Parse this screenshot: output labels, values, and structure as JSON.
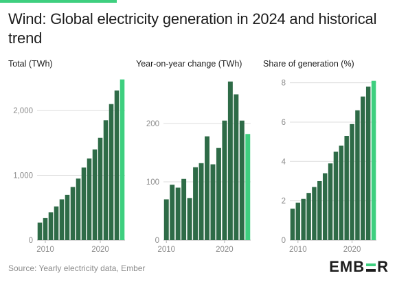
{
  "title": "Wind: Global electricity generation in 2024 and historical trend",
  "footer": {
    "source": "Source: Yearly electricity data, Ember",
    "brand": "EMBER"
  },
  "colors": {
    "bar": "#2e6b47",
    "highlight": "#3ecf7f",
    "accent": "#3ecf7f"
  },
  "chart_data": [
    {
      "type": "bar",
      "title": "Total (TWh)",
      "x": [
        2009,
        2010,
        2011,
        2012,
        2013,
        2014,
        2015,
        2016,
        2017,
        2018,
        2019,
        2020,
        2021,
        2022,
        2023,
        2024
      ],
      "values": [
        270,
        340,
        430,
        520,
        630,
        700,
        820,
        950,
        1120,
        1260,
        1400,
        1580,
        1850,
        2100,
        2310,
        2480
      ],
      "xticks": [
        2010,
        2020
      ],
      "yticks": [
        0,
        1000,
        2000
      ],
      "ytick_labels": [
        "0",
        "1,000",
        "2,000"
      ],
      "ylim": [
        0,
        2520
      ],
      "highlight_last": true
    },
    {
      "type": "bar",
      "title": "Year-on-year change (TWh)",
      "x": [
        2010,
        2011,
        2012,
        2013,
        2014,
        2015,
        2016,
        2017,
        2018,
        2019,
        2020,
        2021,
        2022,
        2023,
        2024
      ],
      "values": [
        70,
        95,
        90,
        105,
        72,
        125,
        132,
        178,
        130,
        158,
        205,
        272,
        250,
        205,
        182
      ],
      "xticks": [
        2010,
        2020
      ],
      "yticks": [
        0,
        100,
        200
      ],
      "ytick_labels": [
        "0",
        "100",
        "200"
      ],
      "ylim": [
        0,
        280
      ],
      "highlight_last": true
    },
    {
      "type": "bar",
      "title": "Share of generation (%)",
      "x": [
        2009,
        2010,
        2011,
        2012,
        2013,
        2014,
        2015,
        2016,
        2017,
        2018,
        2019,
        2020,
        2021,
        2022,
        2023,
        2024
      ],
      "values": [
        1.6,
        1.9,
        2.1,
        2.4,
        2.7,
        3.0,
        3.4,
        3.9,
        4.5,
        4.8,
        5.3,
        5.9,
        6.6,
        7.3,
        7.8,
        8.1
      ],
      "xticks": [
        2010,
        2020
      ],
      "yticks": [
        0,
        2,
        4,
        6,
        8
      ],
      "ytick_labels": [
        "0",
        "2",
        "4",
        "6",
        "8"
      ],
      "ylim": [
        0,
        8.3
      ],
      "highlight_last": true
    }
  ]
}
